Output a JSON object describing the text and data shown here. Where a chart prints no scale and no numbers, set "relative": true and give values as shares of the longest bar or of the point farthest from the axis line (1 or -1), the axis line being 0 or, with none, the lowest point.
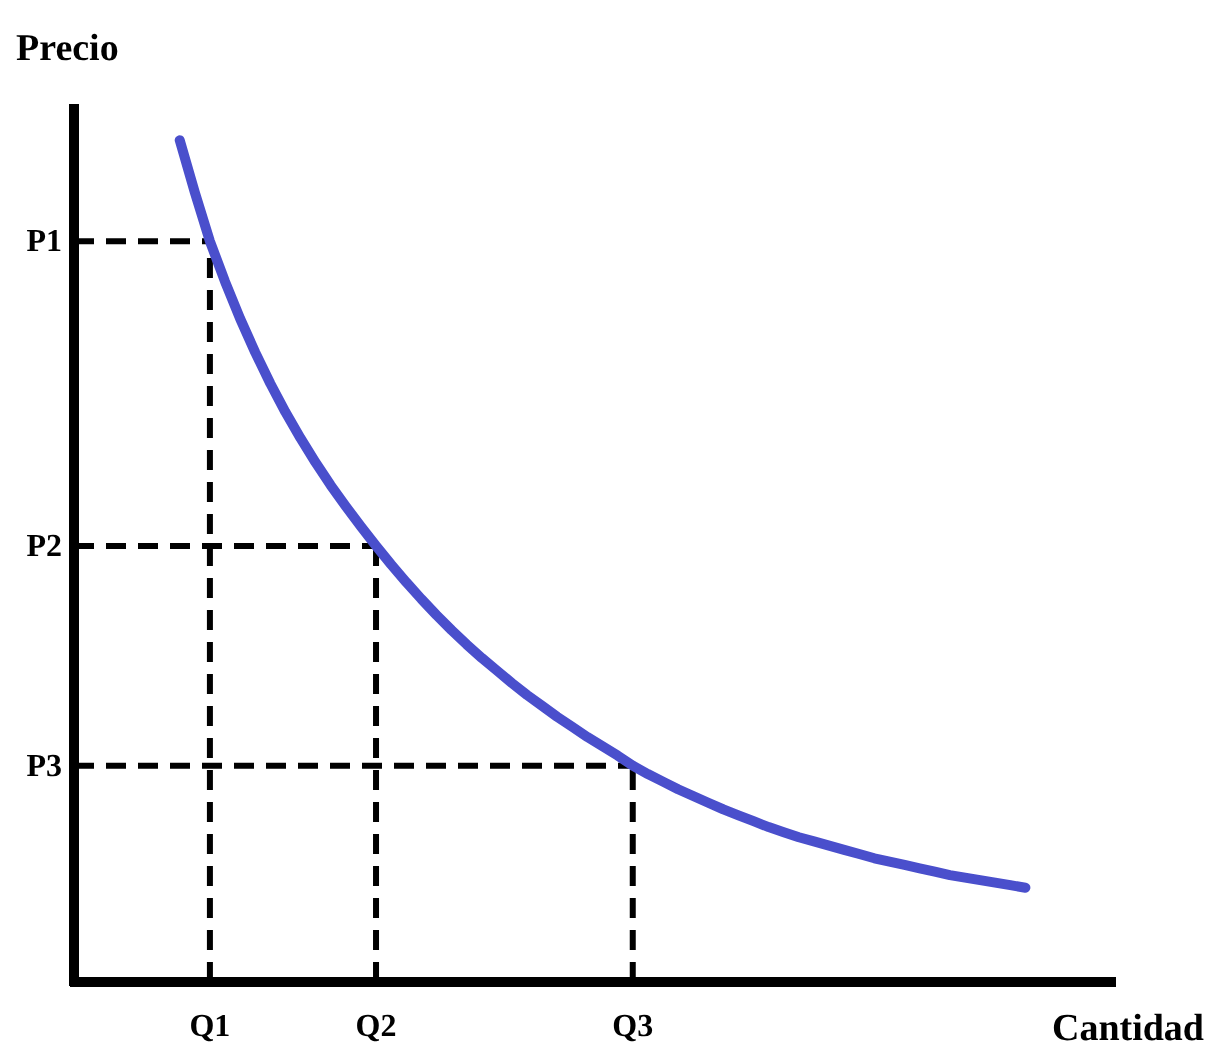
{
  "chart_data": {
    "type": "line",
    "xlabel": "Cantidad",
    "ylabel": "Precio",
    "relative": true,
    "marker": "none",
    "categories": [
      null,
      null,
      null,
      null,
      null,
      null,
      null,
      null,
      null,
      "Q1",
      null,
      null,
      null,
      null,
      null,
      null,
      null,
      null,
      null,
      null,
      "Q2",
      null,
      null,
      null,
      null,
      null,
      null,
      null,
      null,
      null,
      null,
      null,
      null,
      null,
      null,
      null,
      null,
      "Q3",
      null,
      null,
      null,
      null,
      null,
      null,
      null,
      null,
      null,
      null,
      null,
      null,
      null,
      null,
      null,
      null,
      null,
      null,
      null,
      null,
      null,
      null,
      null,
      null,
      null,
      null,
      null,
      null,
      null,
      null,
      null,
      null
    ],
    "series": [
      {
        "color": "#4a4fcc",
        "line_style": "solid",
        "values": [
          null,
          null,
          null,
          null,
          null,
          null,
          null,
          1,
          0.938,
          0.88,
          0.832,
          0.788,
          0.748,
          0.711,
          0.677,
          0.646,
          0.617,
          0.59,
          0.565,
          0.541,
          0.518,
          0.496,
          0.475,
          0.455,
          0.436,
          0.418,
          0.401,
          0.385,
          0.37,
          0.355,
          0.341,
          0.328,
          0.315,
          0.303,
          0.291,
          0.28,
          0.269,
          0.257,
          0.247,
          0.238,
          0.229,
          0.221,
          0.213,
          0.205,
          0.198,
          0.191,
          0.184,
          0.178,
          0.172,
          0.167,
          0.162,
          0.157,
          0.152,
          0.147,
          0.143,
          0.139,
          0.135,
          0.131,
          0.127,
          0.124,
          0.121,
          0.118,
          0.115,
          0.112,
          null,
          null,
          null,
          null,
          null,
          null
        ]
      }
    ],
    "ref_lines": [
      {
        "axis": "y",
        "value": 0.88,
        "label": "P1",
        "color": "#000000",
        "line_style": "dashed"
      },
      {
        "axis": "y",
        "value": 0.518,
        "label": "P2",
        "color": "#000000",
        "line_style": "dashed"
      },
      {
        "axis": "y",
        "value": 0.257,
        "label": "P3",
        "color": "#000000",
        "line_style": "dashed"
      },
      {
        "axis": "x",
        "value": "Q1",
        "color": "#000000",
        "line_style": "dashed"
      },
      {
        "axis": "x",
        "value": "Q2",
        "color": "#000000",
        "line_style": "dashed"
      },
      {
        "axis": "x",
        "value": "Q3",
        "color": "#000000",
        "line_style": "dashed"
      }
    ]
  }
}
